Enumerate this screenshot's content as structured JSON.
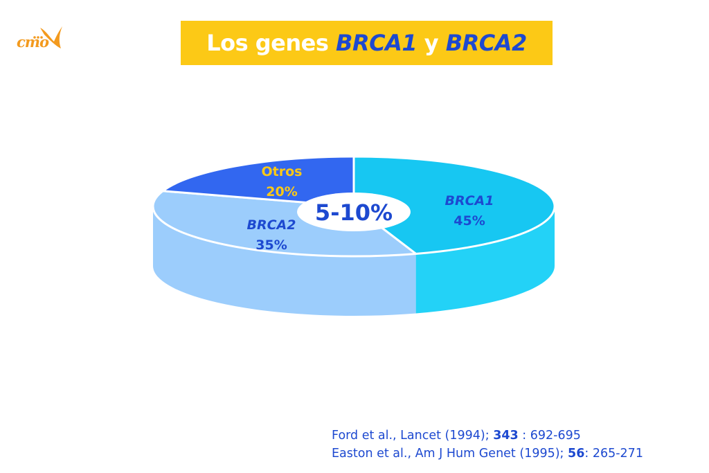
{
  "logo": {
    "text": "cmo",
    "color": "#f39a1e"
  },
  "header": {
    "title_parts": [
      "Los genes ",
      "BRCA1",
      " y ",
      "BRCA2"
    ],
    "background": "#fcc916"
  },
  "chart_data": {
    "type": "pie",
    "three_d": true,
    "slices": [
      {
        "label": "BRCA1",
        "value": 45,
        "display": "45%",
        "top_color": "#17c7f2",
        "side_color": "#23d2f7",
        "label_color": "#1d49d0"
      },
      {
        "label": "BRCA2",
        "value": 35,
        "display": "35%",
        "top_color": "#9ccdfc",
        "side_color": "#9ccdfc",
        "label_color": "#1d49d0"
      },
      {
        "label": "Otros",
        "value": 20,
        "display": "20%",
        "top_color": "#3267f0",
        "side_color": "#3267f0",
        "label_color": "#fcc916"
      }
    ],
    "center_label": "5-10%"
  },
  "references": [
    {
      "pre": "Ford et al., Lancet (1994); ",
      "vol": "343",
      "post": " : 692-695"
    },
    {
      "pre": "Easton et al., Am J Hum Genet (1995); ",
      "vol": "56",
      "post": ": 265-271"
    }
  ]
}
